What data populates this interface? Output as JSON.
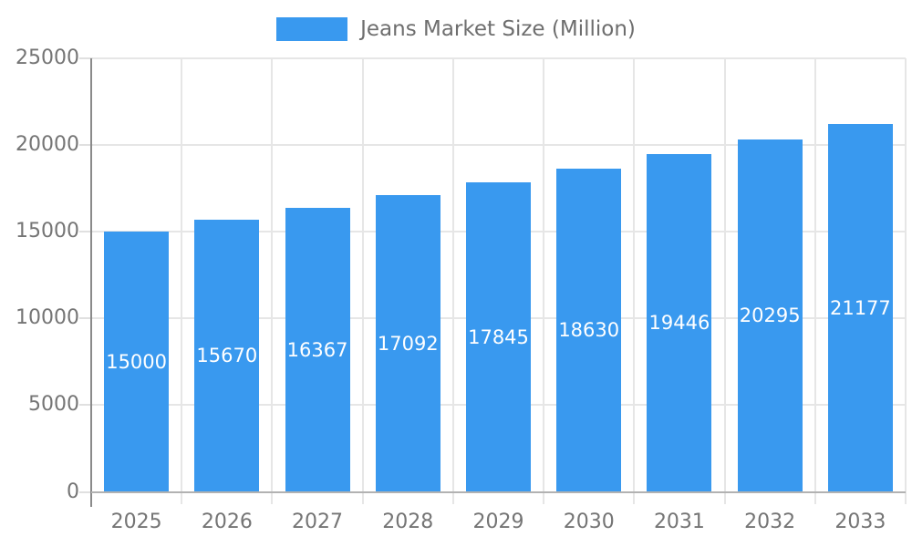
{
  "legend": {
    "label": "Jeans Market Size (Million)"
  },
  "chart_data": {
    "type": "bar",
    "title": "",
    "series_name": "Jeans Market Size (Million)",
    "categories": [
      "2025",
      "2026",
      "2027",
      "2028",
      "2029",
      "2030",
      "2031",
      "2032",
      "2033"
    ],
    "values": [
      15000,
      15670,
      16367,
      17092,
      17845,
      18630,
      19446,
      20295,
      21177
    ],
    "xlabel": "",
    "ylabel": "",
    "ylim": [
      0,
      25000
    ],
    "yticks": [
      0,
      5000,
      10000,
      15000,
      20000,
      25000
    ],
    "grid": true,
    "legend_position": "top",
    "value_labels": "inside-center-white"
  },
  "colors": {
    "bar": "#3999EF",
    "grid": "#e6e6e6",
    "tick": "#e0e0e0",
    "axis_line": "#8a8a8a",
    "baseline": "#b2b2b2",
    "axis_text": "#757575",
    "legend_text": "#6e6e6e",
    "value_text": "#ffffff",
    "background": "#ffffff"
  }
}
